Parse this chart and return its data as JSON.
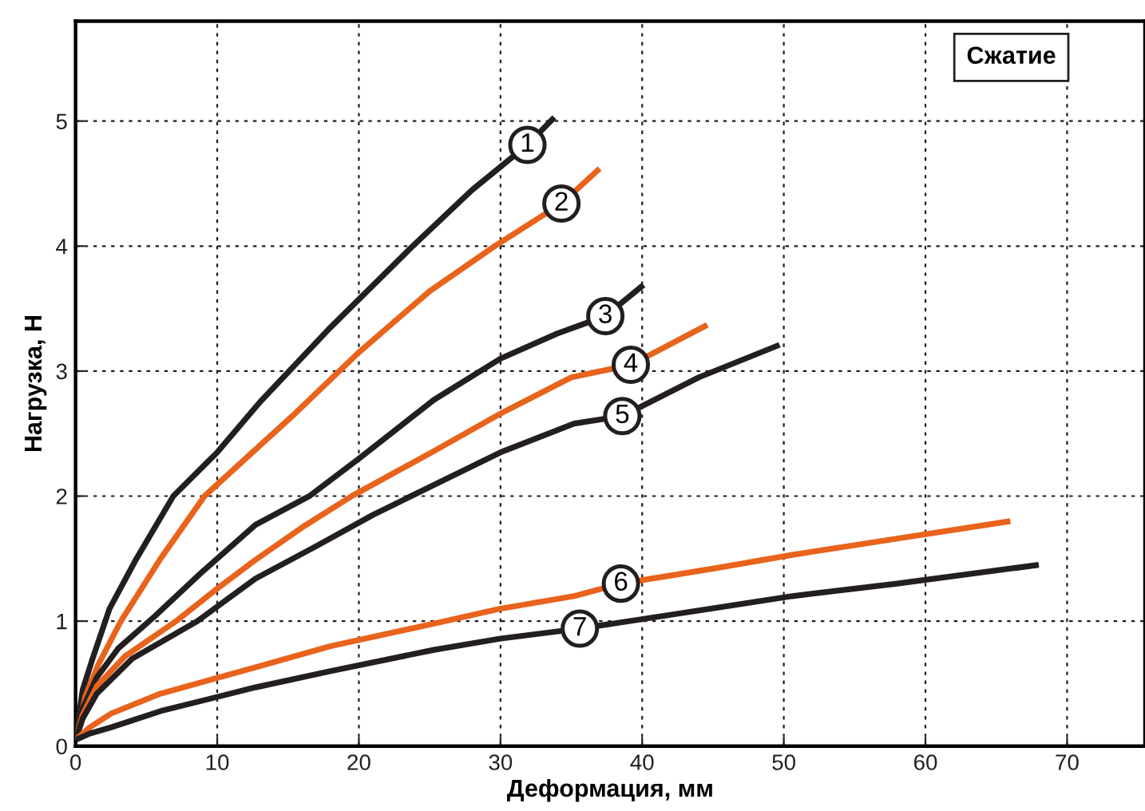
{
  "chart_data": {
    "type": "line",
    "xlabel": "Деформация, мм",
    "ylabel": "Нагрузка, Н",
    "xlim": [
      0,
      75.5
    ],
    "ylim": [
      0,
      5.8
    ],
    "xticks": [
      0,
      10,
      20,
      30,
      40,
      50,
      60,
      70
    ],
    "yticks": [
      0,
      1,
      2,
      3,
      4,
      5
    ],
    "grid": true,
    "line_style": "solid",
    "marker": "none",
    "series": [
      {
        "color": "#231f20",
        "x": [
          0,
          0.5,
          1.2,
          2.4,
          4.3,
          6.9,
          10,
          13,
          18,
          23.8,
          28,
          31.9,
          33.8
        ],
        "values": [
          0.05,
          0.45,
          0.7,
          1.1,
          1.5,
          2.0,
          2.35,
          2.75,
          3.35,
          4.0,
          4.45,
          4.81,
          5.03
        ]
      },
      {
        "color": "#e8631c",
        "x": [
          0,
          0.7,
          1.6,
          3.2,
          6,
          9.1,
          12,
          15.3,
          20,
          25,
          29.6,
          34.3,
          37
        ],
        "values": [
          0.05,
          0.4,
          0.65,
          1.0,
          1.5,
          2.0,
          2.3,
          2.64,
          3.15,
          3.64,
          4.0,
          4.34,
          4.62
        ]
      },
      {
        "color": "#231f20",
        "x": [
          0,
          0.5,
          1.5,
          3,
          5.6,
          9,
          12.7,
          16.5,
          20,
          25.3,
          30,
          34,
          37.4,
          40.1
        ],
        "values": [
          0.05,
          0.3,
          0.55,
          0.78,
          1.04,
          1.4,
          1.77,
          2.0,
          2.3,
          2.77,
          3.1,
          3.3,
          3.44,
          3.69
        ]
      },
      {
        "color": "#e8631c",
        "x": [
          0,
          0.5,
          1.5,
          3.5,
          7.1,
          10,
          12.7,
          16,
          19.5,
          25.3,
          30,
          35,
          39.2,
          44.6
        ],
        "values": [
          0.05,
          0.25,
          0.48,
          0.72,
          1.0,
          1.26,
          1.49,
          1.75,
          2.0,
          2.36,
          2.66,
          2.95,
          3.05,
          3.37
        ]
      },
      {
        "color": "#231f20",
        "x": [
          0,
          0.5,
          1.5,
          4,
          8.6,
          12.7,
          17,
          21,
          25.3,
          30,
          35.2,
          38.6,
          44,
          49.7
        ],
        "values": [
          0.05,
          0.22,
          0.42,
          0.7,
          1.0,
          1.34,
          1.6,
          1.85,
          2.09,
          2.35,
          2.58,
          2.64,
          2.95,
          3.21
        ]
      },
      {
        "color": "#e8631c",
        "x": [
          0,
          1,
          2.5,
          6,
          12.7,
          18,
          25.3,
          30,
          35.2,
          38.5,
          45,
          50.6,
          58,
          66
        ],
        "values": [
          0.05,
          0.15,
          0.26,
          0.42,
          0.63,
          0.8,
          0.98,
          1.1,
          1.2,
          1.3,
          1.42,
          1.53,
          1.66,
          1.8
        ]
      },
      {
        "color": "#231f20",
        "x": [
          0,
          1,
          2.5,
          6,
          12.7,
          18,
          25.3,
          30,
          35.6,
          42,
          50.6,
          58,
          68
        ],
        "values": [
          0.05,
          0.1,
          0.15,
          0.28,
          0.47,
          0.6,
          0.77,
          0.86,
          0.94,
          1.05,
          1.2,
          1.3,
          1.45
        ]
      }
    ],
    "annotations": [
      {
        "text": "1",
        "x": 31.9,
        "y": 4.81
      },
      {
        "text": "2",
        "x": 34.3,
        "y": 4.34
      },
      {
        "text": "3",
        "x": 37.4,
        "y": 3.44
      },
      {
        "text": "4",
        "x": 39.2,
        "y": 3.05
      },
      {
        "text": "5",
        "x": 38.6,
        "y": 2.64
      },
      {
        "text": "6",
        "x": 38.5,
        "y": 1.3
      },
      {
        "text": "7",
        "x": 35.6,
        "y": 0.94
      },
      "Сжатие"
    ]
  }
}
